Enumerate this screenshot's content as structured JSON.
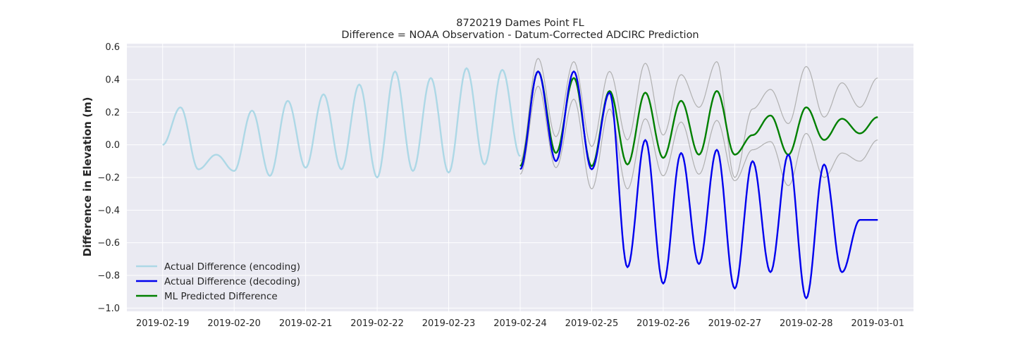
{
  "chart_data": {
    "type": "line",
    "title": "8720219 Dames Point FL",
    "subtitle": "Difference = NOAA Observation - Datum-Corrected ADCIRC Prediction",
    "xlabel": "",
    "ylabel": "Difference in Elevation (m)",
    "xlim": [
      "2019-02-18 12:00",
      "2019-03-01 12:00"
    ],
    "ylim": [
      -1.02,
      0.62
    ],
    "yticks": [
      0.6,
      0.4,
      0.2,
      0.0,
      -0.2,
      -0.4,
      -0.6,
      -0.8,
      -1.0
    ],
    "ytick_labels": [
      "0.6",
      "0.4",
      "0.2",
      "0.0",
      "−0.2",
      "−0.4",
      "−0.6",
      "−0.8",
      "−1.0"
    ],
    "xticks": [
      "2019-02-19",
      "2019-02-20",
      "2019-02-21",
      "2019-02-22",
      "2019-02-23",
      "2019-02-24",
      "2019-02-25",
      "2019-02-26",
      "2019-02-27",
      "2019-02-28",
      "2019-03-01"
    ],
    "grid": true,
    "legend_position": "lower-left",
    "series": [
      {
        "name": "Actual Difference (encoding)",
        "color": "#add8e6",
        "x": [
          "2019-02-19 00:00",
          "2019-02-19 06:00",
          "2019-02-19 12:00",
          "2019-02-19 18:00",
          "2019-02-20 00:00",
          "2019-02-20 06:00",
          "2019-02-20 12:00",
          "2019-02-20 18:00",
          "2019-02-21 00:00",
          "2019-02-21 06:00",
          "2019-02-21 12:00",
          "2019-02-21 18:00",
          "2019-02-22 00:00",
          "2019-02-22 06:00",
          "2019-02-22 12:00",
          "2019-02-22 18:00",
          "2019-02-23 00:00",
          "2019-02-23 06:00",
          "2019-02-23 12:00",
          "2019-02-23 18:00",
          "2019-02-24 00:00"
        ],
        "y": [
          0.0,
          0.23,
          -0.15,
          -0.06,
          -0.16,
          0.21,
          -0.19,
          0.27,
          -0.14,
          0.31,
          -0.15,
          0.37,
          -0.2,
          0.45,
          -0.16,
          0.41,
          -0.17,
          0.47,
          -0.12,
          0.46,
          -0.07
        ]
      },
      {
        "name": "Actual Difference (decoding)",
        "color": "#0000ee",
        "x": [
          "2019-02-24 00:00",
          "2019-02-24 06:00",
          "2019-02-24 12:00",
          "2019-02-24 18:00",
          "2019-02-25 00:00",
          "2019-02-25 06:00",
          "2019-02-25 12:00",
          "2019-02-25 18:00",
          "2019-02-26 00:00",
          "2019-02-26 06:00",
          "2019-02-26 12:00",
          "2019-02-26 18:00",
          "2019-02-27 00:00",
          "2019-02-27 06:00",
          "2019-02-27 12:00",
          "2019-02-27 18:00",
          "2019-02-28 00:00",
          "2019-02-28 06:00",
          "2019-02-28 12:00",
          "2019-02-28 18:00",
          "2019-03-01 00:00"
        ],
        "y": [
          -0.15,
          0.45,
          -0.1,
          0.45,
          -0.15,
          0.32,
          -0.75,
          0.03,
          -0.85,
          -0.05,
          -0.73,
          -0.03,
          -0.88,
          -0.1,
          -0.78,
          -0.06,
          -0.94,
          -0.12,
          -0.78,
          -0.46,
          -0.46
        ]
      },
      {
        "name": "ML Predicted Difference",
        "color": "#008000",
        "x": [
          "2019-02-24 00:00",
          "2019-02-24 06:00",
          "2019-02-24 12:00",
          "2019-02-24 18:00",
          "2019-02-25 00:00",
          "2019-02-25 06:00",
          "2019-02-25 12:00",
          "2019-02-25 18:00",
          "2019-02-26 00:00",
          "2019-02-26 06:00",
          "2019-02-26 12:00",
          "2019-02-26 18:00",
          "2019-02-27 00:00",
          "2019-02-27 06:00",
          "2019-02-27 12:00",
          "2019-02-27 18:00",
          "2019-02-28 00:00",
          "2019-02-28 06:00",
          "2019-02-28 12:00",
          "2019-02-28 18:00",
          "2019-03-01 00:00"
        ],
        "y": [
          -0.13,
          0.45,
          -0.05,
          0.41,
          -0.13,
          0.33,
          -0.12,
          0.32,
          -0.08,
          0.27,
          -0.06,
          0.33,
          -0.06,
          0.06,
          0.18,
          -0.06,
          0.23,
          0.03,
          0.16,
          0.07,
          0.17
        ]
      },
      {
        "name": "",
        "color": "#b0b0b0",
        "x": [
          "2019-02-24 00:00",
          "2019-02-24 06:00",
          "2019-02-24 12:00",
          "2019-02-24 18:00",
          "2019-02-25 00:00",
          "2019-02-25 06:00",
          "2019-02-25 12:00",
          "2019-02-25 18:00",
          "2019-02-26 00:00",
          "2019-02-26 06:00",
          "2019-02-26 12:00",
          "2019-02-26 18:00",
          "2019-02-27 00:00",
          "2019-02-27 06:00",
          "2019-02-27 12:00",
          "2019-02-27 18:00",
          "2019-02-28 00:00",
          "2019-02-28 06:00",
          "2019-02-28 12:00",
          "2019-02-28 18:00",
          "2019-03-01 00:00"
        ],
        "y": [
          -0.1,
          0.53,
          0.05,
          0.51,
          -0.01,
          0.45,
          0.03,
          0.5,
          0.06,
          0.43,
          0.23,
          0.51,
          -0.2,
          0.22,
          0.34,
          0.13,
          0.48,
          0.17,
          0.38,
          0.23,
          0.41
        ]
      },
      {
        "name": "",
        "color": "#b0b0b0",
        "x": [
          "2019-02-24 00:00",
          "2019-02-24 06:00",
          "2019-02-24 12:00",
          "2019-02-24 18:00",
          "2019-02-25 00:00",
          "2019-02-25 06:00",
          "2019-02-25 12:00",
          "2019-02-25 18:00",
          "2019-02-26 00:00",
          "2019-02-26 06:00",
          "2019-02-26 12:00",
          "2019-02-26 18:00",
          "2019-02-27 00:00",
          "2019-02-27 06:00",
          "2019-02-27 12:00",
          "2019-02-27 18:00",
          "2019-02-28 00:00",
          "2019-02-28 06:00",
          "2019-02-28 12:00",
          "2019-02-28 18:00",
          "2019-03-01 00:00"
        ],
        "y": [
          -0.18,
          0.36,
          -0.14,
          0.28,
          -0.27,
          0.22,
          -0.27,
          0.16,
          -0.19,
          0.14,
          -0.18,
          0.15,
          -0.22,
          -0.03,
          0.02,
          -0.25,
          0.07,
          -0.2,
          -0.05,
          -0.1,
          0.03
        ]
      }
    ]
  }
}
